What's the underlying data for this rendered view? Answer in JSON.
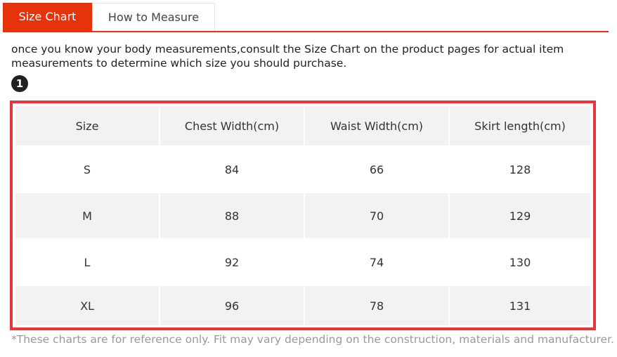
{
  "tabs": [
    "Size Chart",
    "How to Measure"
  ],
  "intro": "once you know your body measurements,consult the Size Chart on the product pages for actual item measurements to determine which size you should purchase.",
  "step": 1,
  "table": {
    "header": [
      "Size",
      "Chest Width(cm)",
      "Waist Width(cm)",
      "Skirt length(cm)"
    ],
    "rows": [
      [
        "S",
        84,
        66,
        128
      ],
      [
        "M",
        88,
        70,
        129
      ],
      [
        "L",
        92,
        74,
        130
      ],
      [
        "XL",
        96,
        78,
        131
      ]
    ]
  },
  "footnote": "*These charts are for reference only. Fit may vary depending on the construction, materials and manufacturer."
}
